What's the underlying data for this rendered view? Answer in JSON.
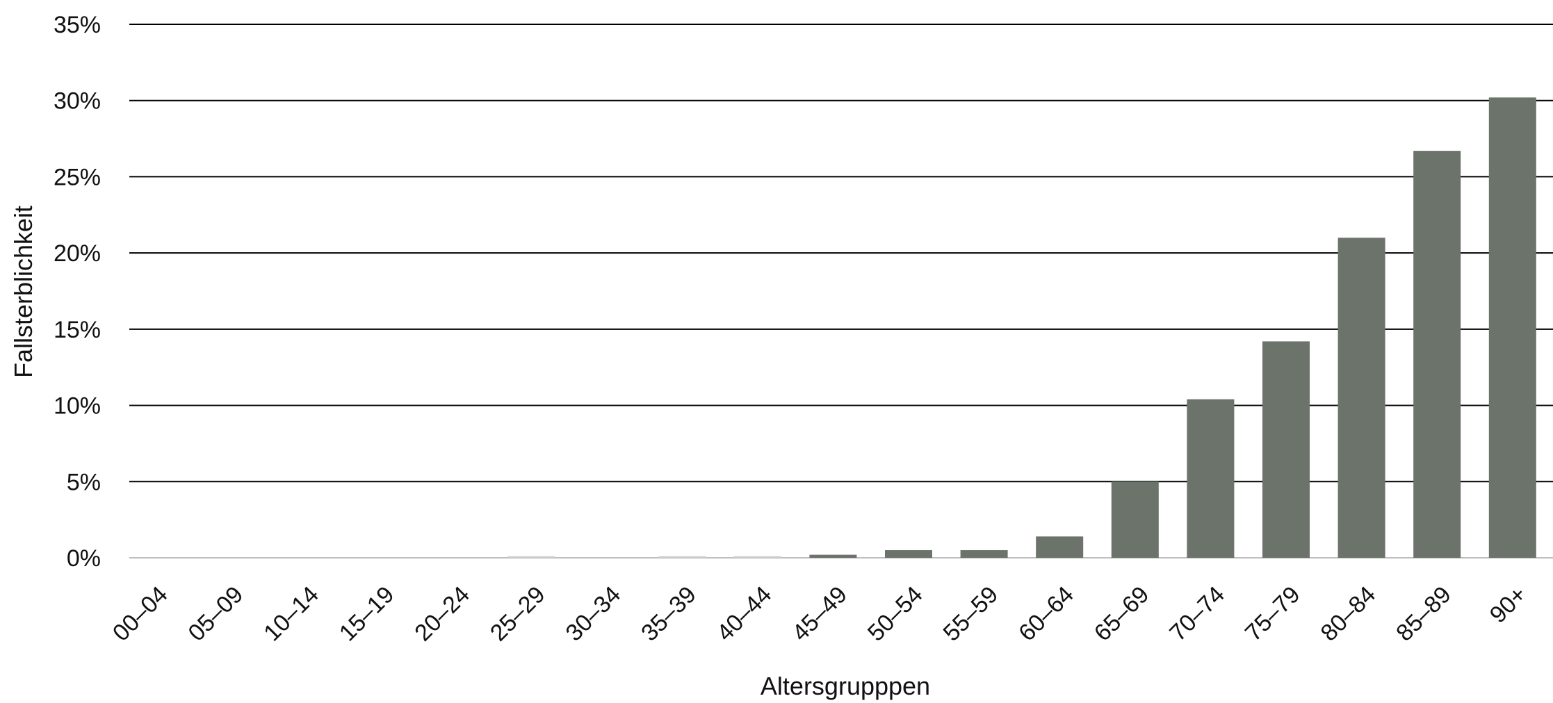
{
  "chart_data": {
    "type": "bar",
    "title": "",
    "xlabel": "Altersgrupppen",
    "ylabel": "Fallsterblichkeit",
    "categories": [
      "00–04",
      "05–09",
      "10–14",
      "15–19",
      "20–24",
      "25–29",
      "30–34",
      "35–39",
      "40–44",
      "45–49",
      "50–54",
      "55–59",
      "60–64",
      "65–69",
      "70–74",
      "75–79",
      "80–84",
      "85–89",
      "90+"
    ],
    "values": [
      0.0,
      0.0,
      0.0,
      0.0,
      0.0,
      0.1,
      0.0,
      0.1,
      0.1,
      0.2,
      0.5,
      0.5,
      1.4,
      5.0,
      10.4,
      14.2,
      21.0,
      26.7,
      30.2
    ],
    "ylim": [
      0,
      35
    ],
    "yticks": [
      0,
      5,
      10,
      15,
      20,
      25,
      30,
      35
    ],
    "ytick_suffix": "%",
    "grid": true,
    "bar_color": "#6b736b",
    "grid_color": "#000000"
  }
}
